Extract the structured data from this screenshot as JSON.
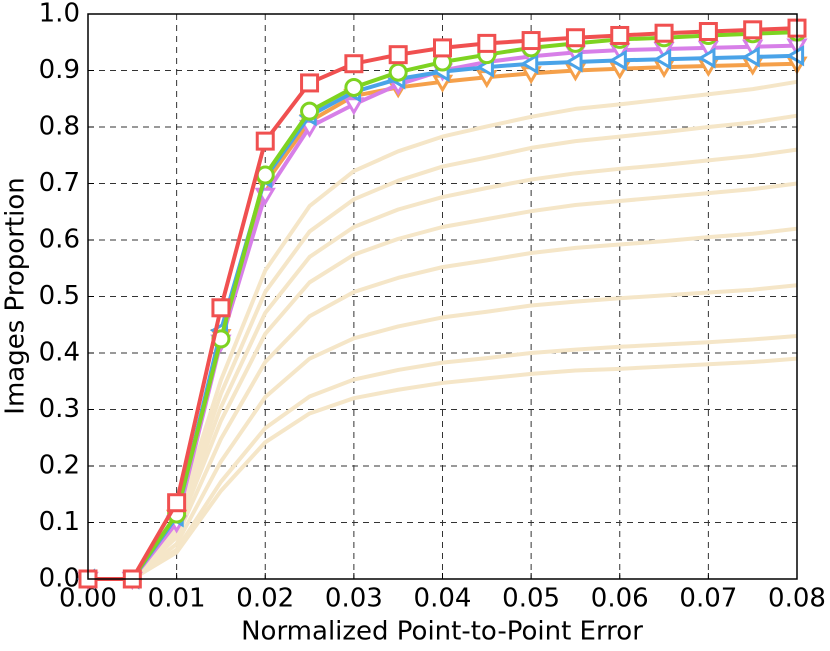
{
  "chart_data": {
    "type": "line",
    "x_label": "Normalized Point-to-Point Error",
    "y_label": "Images Proportion",
    "x": [
      0,
      0.005,
      0.01,
      0.015,
      0.02,
      0.025,
      0.03,
      0.035,
      0.04,
      0.045,
      0.05,
      0.055,
      0.06,
      0.065,
      0.07,
      0.075,
      0.08
    ],
    "xlim": [
      0,
      0.08
    ],
    "ylim": [
      0,
      1
    ],
    "xticks": [
      {
        "value": 0,
        "label": "0.00"
      },
      0.01,
      0.02,
      0.03,
      0.04,
      0.05,
      0.06,
      0.07,
      0.08
    ],
    "yticks": [
      {
        "value": 0,
        "label": "0.0"
      },
      0.1,
      0.2,
      0.3,
      0.4,
      0.5,
      0.6,
      0.7,
      0.8,
      0.9,
      {
        "value": 1,
        "label": "1.0"
      }
    ],
    "grid": true,
    "series": [
      {
        "color": "#f5e6c8",
        "values": [
          0,
          0,
          0.106,
          0.352,
          0.546,
          0.66,
          0.722,
          0.757,
          0.783,
          0.801,
          0.818,
          0.832,
          0.84,
          0.849,
          0.858,
          0.867,
          0.88
        ]
      },
      {
        "color": "#f5e6c8",
        "values": [
          0,
          0,
          0.098,
          0.328,
          0.508,
          0.615,
          0.672,
          0.705,
          0.73,
          0.746,
          0.763,
          0.775,
          0.783,
          0.791,
          0.8,
          0.808,
          0.82
        ]
      },
      {
        "color": "#f5e6c8",
        "values": [
          0,
          0,
          0.091,
          0.304,
          0.471,
          0.57,
          0.623,
          0.654,
          0.676,
          0.692,
          0.707,
          0.718,
          0.726,
          0.733,
          0.741,
          0.749,
          0.76
        ]
      },
      {
        "color": "#f5e6c8",
        "values": [
          0,
          0,
          0.084,
          0.28,
          0.434,
          0.525,
          0.574,
          0.602,
          0.623,
          0.637,
          0.651,
          0.662,
          0.669,
          0.676,
          0.683,
          0.69,
          0.7
        ]
      },
      {
        "color": "#f5e6c8",
        "values": [
          0,
          0,
          0.074,
          0.248,
          0.384,
          0.465,
          0.508,
          0.533,
          0.552,
          0.564,
          0.577,
          0.586,
          0.592,
          0.598,
          0.605,
          0.611,
          0.62
        ]
      },
      {
        "color": "#f5e6c8",
        "values": [
          0,
          0,
          0.062,
          0.208,
          0.322,
          0.39,
          0.426,
          0.447,
          0.463,
          0.473,
          0.484,
          0.491,
          0.497,
          0.502,
          0.507,
          0.512,
          0.52
        ]
      },
      {
        "color": "#f5e6c8",
        "values": [
          0,
          0,
          0.052,
          0.172,
          0.267,
          0.323,
          0.353,
          0.37,
          0.383,
          0.391,
          0.4,
          0.406,
          0.411,
          0.415,
          0.419,
          0.424,
          0.43
        ]
      },
      {
        "color": "#f5e6c8",
        "values": [
          0,
          0,
          0.047,
          0.156,
          0.242,
          0.293,
          0.32,
          0.335,
          0.347,
          0.355,
          0.363,
          0.369,
          0.372,
          0.376,
          0.38,
          0.384,
          0.39
        ]
      },
      {
        "color": "#f5a04a",
        "marker": "triangle-down",
        "values": [
          0,
          0,
          0.11,
          0.43,
          0.7,
          0.81,
          0.855,
          0.87,
          0.88,
          0.888,
          0.895,
          0.9,
          0.903,
          0.906,
          0.908,
          0.91,
          0.912
        ]
      },
      {
        "color": "#d77fe8",
        "marker": "triangle-down",
        "values": [
          0,
          0,
          0.1,
          0.42,
          0.68,
          0.8,
          0.84,
          0.875,
          0.9,
          0.915,
          0.925,
          0.932,
          0.936,
          0.938,
          0.94,
          0.942,
          0.944
        ]
      },
      {
        "color": "#4aa3e8",
        "marker": "triangle-left",
        "values": [
          0,
          0,
          0.11,
          0.44,
          0.71,
          0.82,
          0.862,
          0.885,
          0.898,
          0.906,
          0.912,
          0.915,
          0.918,
          0.92,
          0.922,
          0.924,
          0.926
        ]
      },
      {
        "color": "#7ed321",
        "marker": "circle",
        "values": [
          0,
          0,
          0.115,
          0.425,
          0.715,
          0.828,
          0.87,
          0.897,
          0.915,
          0.928,
          0.94,
          0.948,
          0.955,
          0.958,
          0.962,
          0.965,
          0.968
        ]
      },
      {
        "color": "#f05050",
        "marker": "square",
        "values": [
          0,
          0,
          0.135,
          0.48,
          0.775,
          0.878,
          0.912,
          0.928,
          0.94,
          0.948,
          0.953,
          0.958,
          0.962,
          0.966,
          0.969,
          0.972,
          0.975
        ]
      }
    ]
  }
}
